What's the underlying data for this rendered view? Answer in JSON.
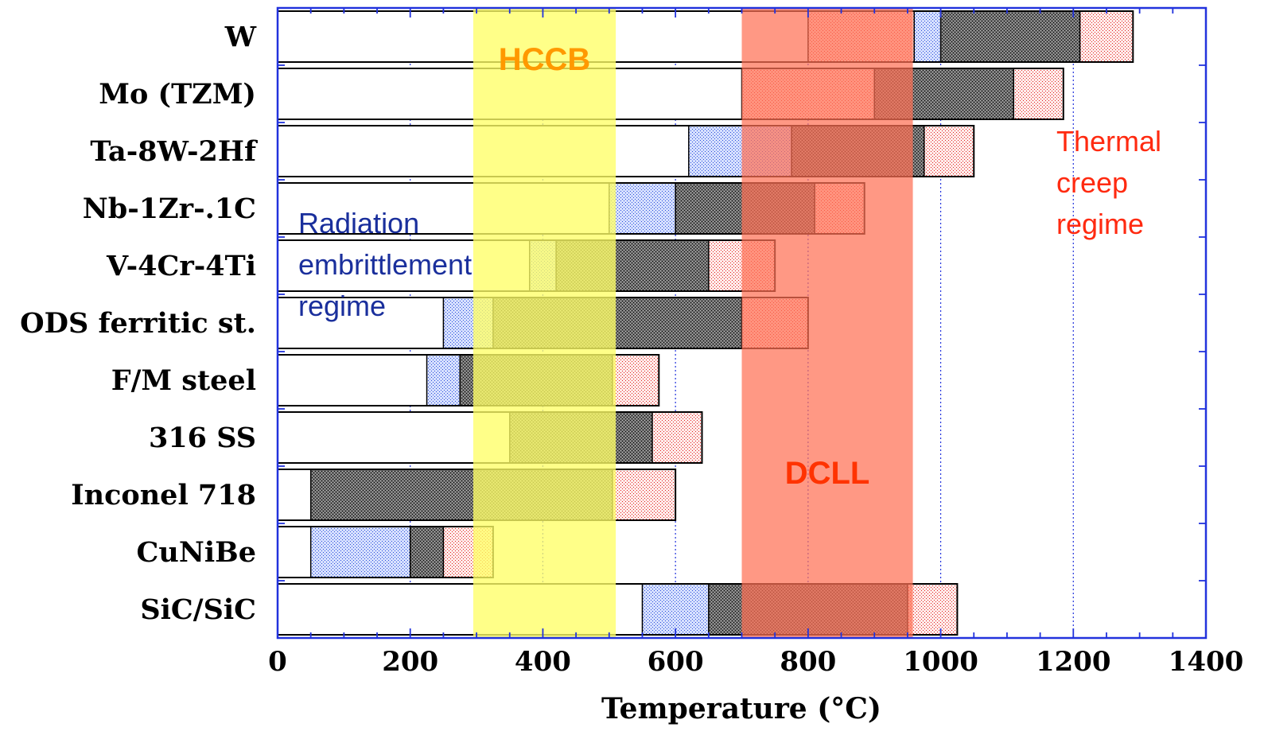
{
  "chart_data": {
    "type": "bar",
    "orientation": "horizontal-range",
    "xlabel": "Temperature (°C)",
    "xlim": [
      0,
      1400
    ],
    "x_ticks": [
      0,
      200,
      400,
      600,
      800,
      1000,
      1200,
      1400
    ],
    "grid": true,
    "categories": [
      "W",
      "Mo (TZM)",
      "Ta-8W-2Hf",
      "Nb-1Zr-.1C",
      "V-4Cr-4Ti",
      "ODS ferritic st.",
      "F/M steel",
      "316 SS",
      "Inconel 718",
      "CuNiBe",
      "SiC/SiC"
    ],
    "bars": [
      {
        "category": "W",
        "white": [
          0,
          800
        ],
        "red_lower": [
          800,
          960
        ],
        "blue": [
          960,
          1000
        ],
        "gray": [
          1000,
          1210
        ],
        "red_upper": [
          1210,
          1290
        ]
      },
      {
        "category": "Mo (TZM)",
        "white": [
          0,
          700
        ],
        "red_lower": [
          700,
          900
        ],
        "blue": null,
        "gray": [
          900,
          1110
        ],
        "red_upper": [
          1110,
          1185
        ]
      },
      {
        "category": "Ta-8W-2Hf",
        "white": [
          0,
          620
        ],
        "red_lower": null,
        "blue": [
          620,
          775
        ],
        "gray": [
          775,
          975
        ],
        "red_upper": [
          975,
          1050
        ]
      },
      {
        "category": "Nb-1Zr-.1C",
        "white": [
          0,
          500
        ],
        "red_lower": null,
        "blue": [
          500,
          600
        ],
        "gray": [
          600,
          810
        ],
        "red_upper": [
          810,
          885
        ]
      },
      {
        "category": "V-4Cr-4Ti",
        "white": [
          0,
          380
        ],
        "red_lower": null,
        "blue": [
          380,
          420
        ],
        "gray": [
          420,
          650
        ],
        "red_upper": [
          650,
          750
        ]
      },
      {
        "category": "ODS ferritic st.",
        "white": [
          0,
          250
        ],
        "red_lower": null,
        "blue": [
          250,
          325
        ],
        "gray": [
          325,
          700
        ],
        "red_upper": [
          700,
          800
        ]
      },
      {
        "category": "F/M steel",
        "white": [
          0,
          225
        ],
        "red_lower": null,
        "blue": [
          225,
          275
        ],
        "gray": [
          275,
          505
        ],
        "red_upper": [
          505,
          575
        ]
      },
      {
        "category": "316 SS",
        "white": [
          0,
          350
        ],
        "red_lower": null,
        "blue": null,
        "gray": [
          350,
          565
        ],
        "red_upper": [
          565,
          640
        ]
      },
      {
        "category": "Inconel 718",
        "white": [
          0,
          50
        ],
        "red_lower": null,
        "blue": null,
        "gray": [
          50,
          505
        ],
        "red_upper": [
          505,
          600
        ]
      },
      {
        "category": "CuNiBe",
        "white": [
          0,
          50
        ],
        "red_lower": null,
        "blue": [
          50,
          200
        ],
        "gray": [
          200,
          250
        ],
        "red_upper": [
          250,
          325
        ]
      },
      {
        "category": "SiC/SiC",
        "white": [
          0,
          550
        ],
        "red_lower": null,
        "blue": [
          550,
          650
        ],
        "gray": [
          650,
          950
        ],
        "red_upper": [
          950,
          1025
        ]
      }
    ],
    "bands": [
      {
        "name": "HCCB",
        "x_range": [
          295,
          510
        ],
        "color": "#ffff66",
        "label_color": "#ff9900"
      },
      {
        "name": "DCLL",
        "x_range": [
          700,
          958
        ],
        "color": "#ff7055",
        "label_color": "#ff3300"
      }
    ],
    "annotations": [
      {
        "id": "radiation",
        "lines": [
          "Radiation",
          "embrittlement",
          "regime"
        ],
        "color": "#1a2f9c"
      },
      {
        "id": "creep",
        "lines": [
          "Thermal",
          "creep",
          "regime"
        ],
        "color": "#ff2a10"
      }
    ]
  },
  "colors": {
    "axis": "#2233dd",
    "gridline": "#2233dd",
    "blue_fill": "#c5d3ff",
    "gray_fill": "#5c5c5c",
    "red_fill": "#ffe3df"
  }
}
